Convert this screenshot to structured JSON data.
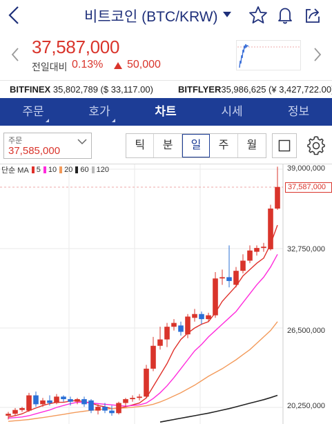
{
  "header": {
    "title": "비트코인 (BTC/KRW)",
    "icons": [
      "back-chevron-icon",
      "star-icon",
      "bell-icon",
      "share-icon"
    ]
  },
  "price": {
    "current": "37,587,000",
    "change_label": "전일대비",
    "change_pct": "0.13%",
    "change_abs": "50,000",
    "color_up": "#d9342b"
  },
  "exchanges": [
    {
      "name": "BITFINEX",
      "value": "35,802,789 ($ 33,117.00)"
    },
    {
      "name": "BITFLYER",
      "value": "35,986,625 (¥ 3,427,722.00)"
    }
  ],
  "tabs": [
    {
      "label": "주문",
      "active": false,
      "submenu": true
    },
    {
      "label": "호가",
      "active": false,
      "submenu": true
    },
    {
      "label": "차트",
      "active": true,
      "submenu": false
    },
    {
      "label": "시세",
      "active": false,
      "submenu": false
    },
    {
      "label": "정보",
      "active": false,
      "submenu": false
    }
  ],
  "tab_bar_color": "#1d3d96",
  "order": {
    "label": "주문",
    "value": "37,585,000"
  },
  "periods": [
    {
      "label": "틱",
      "active": false
    },
    {
      "label": "분",
      "active": false
    },
    {
      "label": "일",
      "active": true
    },
    {
      "label": "주",
      "active": false
    },
    {
      "label": "월",
      "active": false
    }
  ],
  "legend": {
    "label": "단순 MA",
    "items": [
      {
        "period": "5",
        "color": "#e0302a"
      },
      {
        "period": "10",
        "color": "#ff2bdc"
      },
      {
        "period": "20",
        "color": "#f39a5a"
      },
      {
        "period": "60",
        "color": "#222222"
      },
      {
        "period": "120",
        "color": "#bbbbbb"
      }
    ]
  },
  "chart_data": {
    "type": "candlestick",
    "y_ticks": [
      "39,000,000",
      "32,750,000",
      "26,500,000",
      "20,250,000"
    ],
    "y_tick_values": [
      39000000,
      32750000,
      26500000,
      20250000
    ],
    "current_price_label": "37,587,000",
    "current_price": 37587000,
    "candles": [
      {
        "o": 19600000,
        "h": 19900000,
        "l": 19300000,
        "c": 19750000
      },
      {
        "o": 19750000,
        "h": 20200000,
        "l": 19600000,
        "c": 20050000
      },
      {
        "o": 20050000,
        "h": 20300000,
        "l": 19900000,
        "c": 20200000
      },
      {
        "o": 20000000,
        "h": 21400000,
        "l": 19900000,
        "c": 21200000
      },
      {
        "o": 21200000,
        "h": 21500000,
        "l": 20300000,
        "c": 20500000
      },
      {
        "o": 20500000,
        "h": 21000000,
        "l": 20300000,
        "c": 20800000
      },
      {
        "o": 20800000,
        "h": 21200000,
        "l": 20400000,
        "c": 20600000
      },
      {
        "o": 20600000,
        "h": 21300000,
        "l": 20500000,
        "c": 21100000
      },
      {
        "o": 21100000,
        "h": 21200000,
        "l": 20700000,
        "c": 20900000
      },
      {
        "o": 20900000,
        "h": 21100000,
        "l": 20400000,
        "c": 20700000
      },
      {
        "o": 20700000,
        "h": 21000000,
        "l": 20500000,
        "c": 20900000
      },
      {
        "o": 20900000,
        "h": 21100000,
        "l": 20300000,
        "c": 20500000
      },
      {
        "o": 20800000,
        "h": 20900000,
        "l": 19800000,
        "c": 20000000
      },
      {
        "o": 20000000,
        "h": 20500000,
        "l": 19700000,
        "c": 20300000
      },
      {
        "o": 20300000,
        "h": 20600000,
        "l": 19800000,
        "c": 20000000
      },
      {
        "o": 20000000,
        "h": 20400000,
        "l": 19600000,
        "c": 19800000
      },
      {
        "o": 19800000,
        "h": 20700000,
        "l": 19700000,
        "c": 20600000
      },
      {
        "o": 20600000,
        "h": 21000000,
        "l": 20300000,
        "c": 20900000
      },
      {
        "o": 20900000,
        "h": 21200000,
        "l": 20700000,
        "c": 21000000
      },
      {
        "o": 21000000,
        "h": 21300000,
        "l": 20800000,
        "c": 21100000
      },
      {
        "o": 21100000,
        "h": 23600000,
        "l": 21000000,
        "c": 23300000
      },
      {
        "o": 23300000,
        "h": 25800000,
        "l": 23100000,
        "c": 25100000
      },
      {
        "o": 25100000,
        "h": 26600000,
        "l": 24800000,
        "c": 25600000
      },
      {
        "o": 25600000,
        "h": 26900000,
        "l": 25000000,
        "c": 26600000
      },
      {
        "o": 26600000,
        "h": 27200000,
        "l": 26300000,
        "c": 26900000
      },
      {
        "o": 26700000,
        "h": 27000000,
        "l": 25900000,
        "c": 26200000
      },
      {
        "o": 26000000,
        "h": 27600000,
        "l": 25700000,
        "c": 27400000
      },
      {
        "o": 27300000,
        "h": 28000000,
        "l": 27000000,
        "c": 27600000
      },
      {
        "o": 27600000,
        "h": 27800000,
        "l": 26800000,
        "c": 27200000
      },
      {
        "o": 27200000,
        "h": 27700000,
        "l": 27000000,
        "c": 27500000
      },
      {
        "o": 27500000,
        "h": 30900000,
        "l": 27300000,
        "c": 30400000
      },
      {
        "o": 30400000,
        "h": 31100000,
        "l": 29900000,
        "c": 30500000
      },
      {
        "o": 30500000,
        "h": 33000000,
        "l": 29700000,
        "c": 30200000
      },
      {
        "o": 29900000,
        "h": 31300000,
        "l": 29700000,
        "c": 31000000
      },
      {
        "o": 31000000,
        "h": 32300000,
        "l": 30800000,
        "c": 31800000
      },
      {
        "o": 31800000,
        "h": 33000000,
        "l": 31600000,
        "c": 32600000
      },
      {
        "o": 32500000,
        "h": 33000000,
        "l": 32200000,
        "c": 32800000
      },
      {
        "o": 32800000,
        "h": 33200000,
        "l": 32500000,
        "c": 32900000
      },
      {
        "o": 32700000,
        "h": 36200000,
        "l": 32600000,
        "c": 35900000
      },
      {
        "o": 35900000,
        "h": 39200000,
        "l": 35800000,
        "c": 37600000
      }
    ],
    "ma": {
      "5": [
        19500000,
        19600000,
        19750000,
        20000000,
        20200000,
        20400000,
        20550000,
        20650000,
        20650000,
        20750000,
        20800000,
        20700000,
        20600000,
        20400000,
        20300000,
        20150000,
        20200000,
        20300000,
        20450000,
        20600000,
        21000000,
        21900000,
        22800000,
        23700000,
        24800000,
        25600000,
        26100000,
        26500000,
        26800000,
        27000000,
        27700000,
        28600000,
        29200000,
        29800000,
        30600000,
        31100000,
        31600000,
        32000000,
        33100000,
        34600000
      ],
      "10": [
        19400000,
        19450000,
        19500000,
        19600000,
        19750000,
        19900000,
        20050000,
        20250000,
        20400000,
        20550000,
        20650000,
        20650000,
        20600000,
        20550000,
        20500000,
        20450000,
        20400000,
        20350000,
        20400000,
        20450000,
        20600000,
        20950000,
        21400000,
        21950000,
        22600000,
        23300000,
        24000000,
        24700000,
        25200000,
        25800000,
        26300000,
        26800000,
        27300000,
        27800000,
        28500000,
        29200000,
        29900000,
        30500000,
        31300000,
        32300000
      ],
      "20": [
        19150000,
        19200000,
        19250000,
        19300000,
        19380000,
        19450000,
        19530000,
        19620000,
        19700000,
        19800000,
        19880000,
        19950000,
        20020000,
        20080000,
        20120000,
        20150000,
        20180000,
        20210000,
        20260000,
        20320000,
        20380000,
        20500000,
        20680000,
        20900000,
        21150000,
        21400000,
        21700000,
        22000000,
        22350000,
        22700000,
        23000000,
        23300000,
        23650000,
        24000000,
        24400000,
        24800000,
        25300000,
        25800000,
        26300000,
        27000000
      ],
      "60": [
        null,
        null,
        null,
        null,
        null,
        null,
        null,
        null,
        null,
        null,
        null,
        null,
        null,
        null,
        null,
        null,
        null,
        null,
        null,
        null,
        null,
        null,
        19100000,
        19200000,
        19300000,
        19400000,
        19500000,
        19600000,
        19700000,
        19800000,
        19920000,
        20040000,
        20160000,
        20300000,
        20440000,
        20580000,
        20720000,
        20860000,
        21020000,
        21200000
      ]
    }
  }
}
